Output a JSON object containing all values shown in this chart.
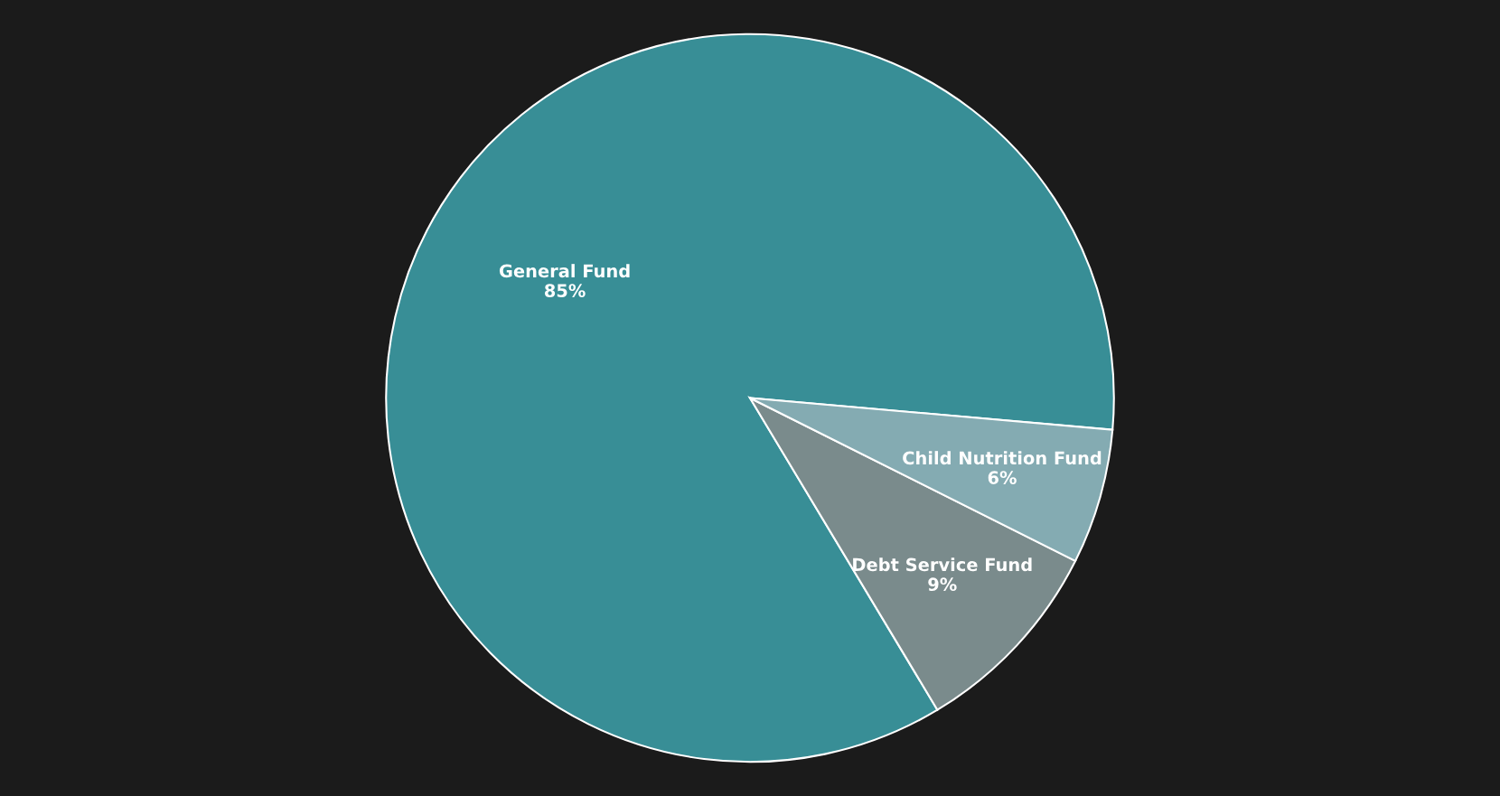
{
  "chart_data": {
    "type": "pie",
    "categories": [
      "General Fund",
      "Debt Service Fund",
      "Child Nutrition Fund"
    ],
    "values": [
      85,
      9,
      6
    ],
    "colors": [
      "#388e96",
      "#7a8b8c",
      "#84abb2"
    ],
    "value_labels": [
      "85%",
      "9%",
      "6%"
    ]
  }
}
